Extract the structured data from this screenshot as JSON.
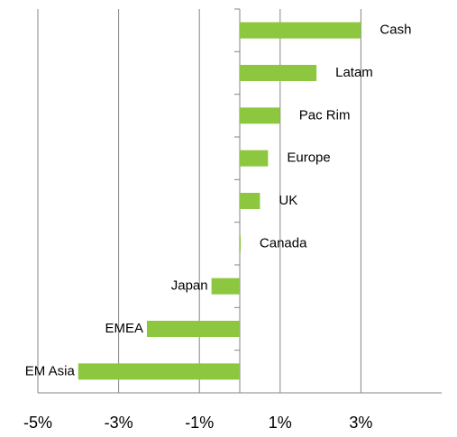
{
  "chart_data": {
    "type": "barh",
    "categories": [
      "Cash",
      "Latam",
      "Pac Rim",
      "Europe",
      "UK",
      "Canada",
      "Japan",
      "EMEA",
      "EM Asia"
    ],
    "values": [
      3.0,
      1.9,
      1.0,
      0.7,
      0.5,
      0.02,
      -0.7,
      -2.3,
      -4.0
    ],
    "color": "#8dc63f",
    "xlim": [
      -5,
      5
    ],
    "xticks": [
      {
        "value": -5,
        "label": "-5%"
      },
      {
        "value": -3,
        "label": "-3%"
      },
      {
        "value": -1,
        "label": "-1%"
      },
      {
        "value": 1,
        "label": "1%"
      },
      {
        "value": 3,
        "label": "3%"
      }
    ],
    "grid": true
  }
}
